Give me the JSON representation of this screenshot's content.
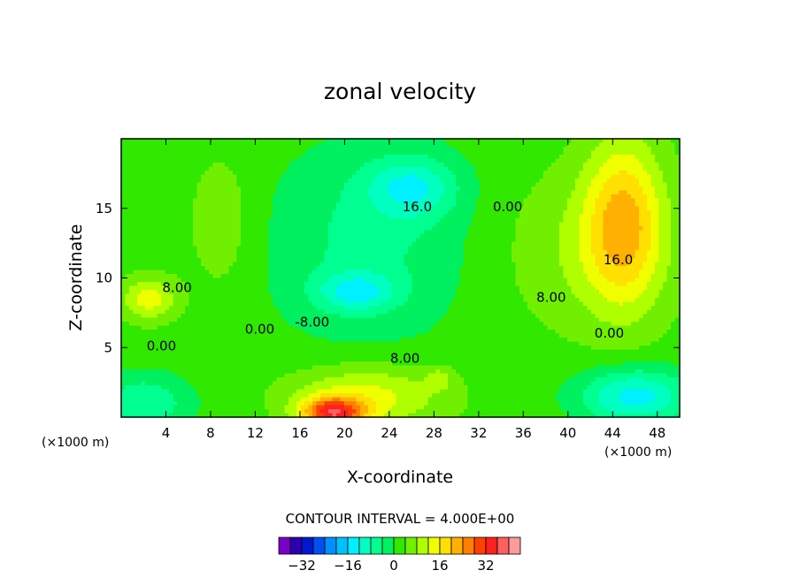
{
  "chart_data": {
    "type": "heatmap",
    "subtype": "filled-contour",
    "title": "zonal velocity",
    "xlabel": "X-coordinate",
    "ylabel": "Z-coordinate",
    "x_unit_label": "(×1000 m)",
    "x_unit_label_right": "(×1000 m)",
    "xlim": [
      0,
      50
    ],
    "ylim": [
      0,
      20
    ],
    "x_ticks": [
      4,
      8,
      12,
      16,
      20,
      24,
      28,
      32,
      36,
      40,
      44,
      48
    ],
    "y_ticks": [
      5,
      10,
      15
    ],
    "contour_interval_text": "CONTOUR INTERVAL = 4.000E+00",
    "contour_interval": 4,
    "contour_labels": [
      {
        "text": "16.0",
        "x": 26.5,
        "z": 14.8
      },
      {
        "text": "0.00",
        "x": 34.6,
        "z": 14.8
      },
      {
        "text": "16.0",
        "x": 44.5,
        "z": 11.0
      },
      {
        "text": "8.00",
        "x": 5.0,
        "z": 9.0
      },
      {
        "text": "8.00",
        "x": 38.5,
        "z": 8.3
      },
      {
        "text": "0.00",
        "x": 12.4,
        "z": 6.0
      },
      {
        "text": "-8.00",
        "x": 17.1,
        "z": 6.5
      },
      {
        "text": "0.00",
        "x": 43.7,
        "z": 5.7
      },
      {
        "text": "0.00",
        "x": 3.6,
        "z": 4.8
      },
      {
        "text": "8.00",
        "x": 25.4,
        "z": 3.9
      }
    ],
    "colorbar": {
      "tick_labels": [
        "−32",
        "−16",
        "0",
        "16",
        "32"
      ],
      "tick_values": [
        -32,
        -16,
        0,
        16,
        32
      ],
      "levels": [
        -40,
        -36,
        -32,
        -28,
        -24,
        -20,
        -16,
        -12,
        -8,
        -4,
        0,
        4,
        8,
        12,
        16,
        20,
        24,
        28,
        32,
        36,
        40
      ],
      "colors": [
        "#7a00c8",
        "#2a00b0",
        "#0018d0",
        "#0050f0",
        "#0090ff",
        "#00c0ff",
        "#00f0ff",
        "#00ffc0",
        "#00ff90",
        "#00f060",
        "#30e800",
        "#70f000",
        "#b0ff00",
        "#f0ff00",
        "#ffe000",
        "#ffb000",
        "#ff8000",
        "#ff4000",
        "#ff2020",
        "#ff6060",
        "#ff9a9a"
      ]
    },
    "field": {
      "base": 2,
      "features": [
        {
          "x": 26,
          "z": 16.5,
          "sx": 4.0,
          "sz": 2.2,
          "a": -12
        },
        {
          "x": 21,
          "z": 9.0,
          "sx": 3.5,
          "sz": 1.4,
          "a": -12
        },
        {
          "x": 22,
          "z": 12.5,
          "sx": 9.0,
          "sz": 7.0,
          "a": -7
        },
        {
          "x": 19,
          "z": 0.3,
          "sx": 2.8,
          "sz": 1.1,
          "a": 28
        },
        {
          "x": 22,
          "z": 1.5,
          "sx": 7.0,
          "sz": 2.2,
          "a": 12
        },
        {
          "x": 45,
          "z": 14.0,
          "sx": 3.5,
          "sz": 6.0,
          "a": 17
        },
        {
          "x": 42,
          "z": 12.0,
          "sx": 8.0,
          "sz": 6.0,
          "a": 6
        },
        {
          "x": 46,
          "z": 1.5,
          "sx": 5.0,
          "sz": 2.0,
          "a": -16
        },
        {
          "x": 2,
          "z": 1.0,
          "sx": 4.0,
          "sz": 2.0,
          "a": -10
        },
        {
          "x": 2.5,
          "z": 8.5,
          "sx": 2.5,
          "sz": 1.6,
          "a": 12
        },
        {
          "x": 9,
          "z": 14.0,
          "sx": 3.0,
          "sz": 5.0,
          "a": 5
        },
        {
          "x": 28.5,
          "z": 2.8,
          "sx": 1.2,
          "sz": 0.8,
          "a": 6
        }
      ]
    }
  }
}
